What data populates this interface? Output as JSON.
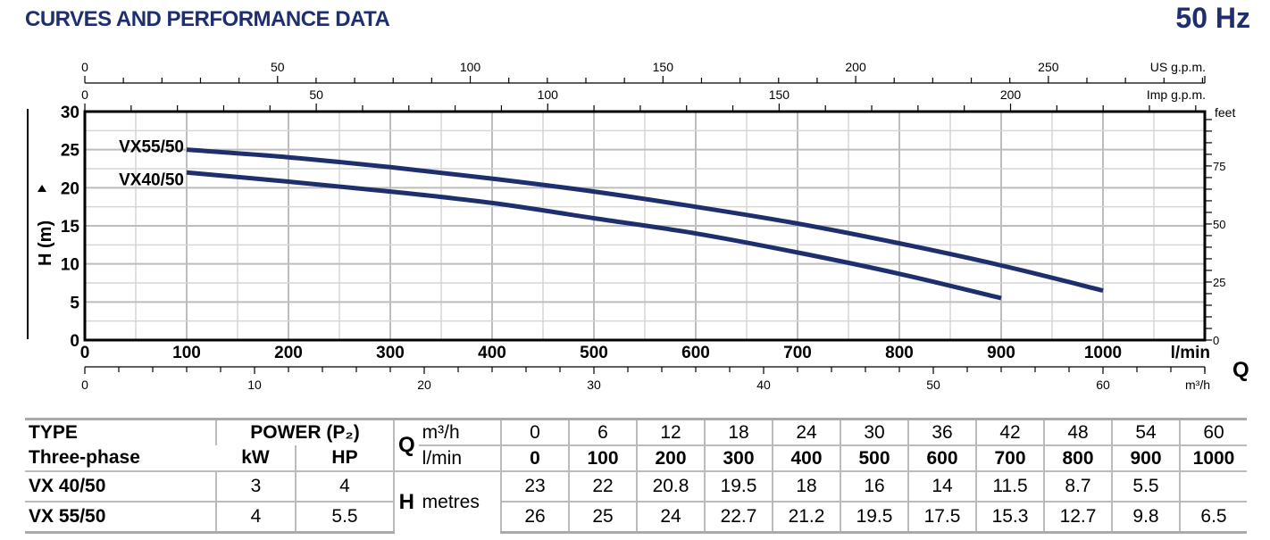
{
  "header": {
    "title": "CURVES AND PERFORMANCE DATA",
    "frequency": "50 Hz"
  },
  "chart_data": {
    "type": "line",
    "x_unit": "l/min",
    "xlim": [
      0,
      1100
    ],
    "x_ticks": [
      0,
      100,
      200,
      300,
      400,
      500,
      600,
      700,
      800,
      900,
      1000
    ],
    "ylabel": "H (m)",
    "ylim": [
      0,
      30
    ],
    "y_ticks": [
      0,
      5,
      10,
      15,
      20,
      25,
      30
    ],
    "grid": true,
    "secondary_axes": {
      "us_gpm": {
        "label": "US g.p.m.",
        "ticks": [
          0,
          50,
          100,
          150,
          200,
          250
        ]
      },
      "imp_gpm": {
        "label": "Imp g.p.m.",
        "ticks": [
          0,
          50,
          100,
          150,
          200
        ]
      },
      "m3h": {
        "label": "m³/h",
        "ticks": [
          0,
          10,
          20,
          30,
          40,
          50,
          60
        ]
      },
      "feet": {
        "label": "feet",
        "ticks": [
          0,
          25,
          50,
          75
        ]
      }
    },
    "q_label": "Q",
    "series": [
      {
        "name": "VX55/50",
        "x": [
          100,
          200,
          300,
          400,
          500,
          600,
          700,
          800,
          900,
          1000
        ],
        "y": [
          25,
          24,
          22.7,
          21.2,
          19.5,
          17.5,
          15.3,
          12.7,
          9.8,
          6.5
        ],
        "color": "#1f2f6e"
      },
      {
        "name": "VX40/50",
        "x": [
          100,
          200,
          300,
          400,
          500,
          600,
          700,
          800,
          900
        ],
        "y": [
          22,
          20.8,
          19.5,
          18,
          16,
          14,
          11.5,
          8.7,
          5.5
        ],
        "color": "#1f2f6e"
      }
    ]
  },
  "table": {
    "type_header": "TYPE",
    "phase_header": "Three-phase",
    "power_header": "POWER (P₂)",
    "kw_header": "kW",
    "hp_header": "HP",
    "q_label": "Q",
    "m3h_label": "m³/h",
    "lmin_label": "l/min",
    "h_label": "H",
    "metres_label": "metres",
    "m3h": [
      "0",
      "6",
      "12",
      "18",
      "24",
      "30",
      "36",
      "42",
      "48",
      "54",
      "60"
    ],
    "lmin": [
      "0",
      "100",
      "200",
      "300",
      "400",
      "500",
      "600",
      "700",
      "800",
      "900",
      "1000"
    ],
    "rows": [
      {
        "type": "VX 40/50",
        "kw": "3",
        "hp": "4",
        "h": [
          "23",
          "22",
          "20.8",
          "19.5",
          "18",
          "16",
          "14",
          "11.5",
          "8.7",
          "5.5",
          ""
        ]
      },
      {
        "type": "VX 55/50",
        "kw": "4",
        "hp": "5.5",
        "h": [
          "26",
          "25",
          "24",
          "22.7",
          "21.2",
          "19.5",
          "17.5",
          "15.3",
          "12.7",
          "9.8",
          "6.5"
        ]
      }
    ]
  }
}
